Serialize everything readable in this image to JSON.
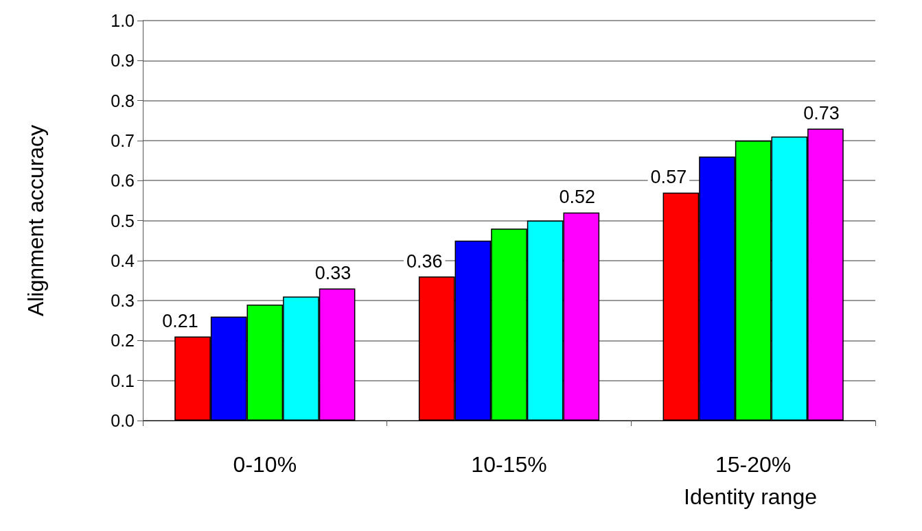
{
  "chart_data": {
    "type": "bar",
    "xlabel": "Identity range",
    "ylabel": "Alignment accuracy",
    "categories": [
      "0-10%",
      "10-15%",
      "15-20%"
    ],
    "series": [
      {
        "color": "#ff0000",
        "values": [
          0.21,
          0.36,
          0.57
        ],
        "value_labels": [
          "0.21",
          "0.36",
          "0.57"
        ]
      },
      {
        "color": "#0000ff",
        "values": [
          0.26,
          0.45,
          0.66
        ]
      },
      {
        "color": "#00ff00",
        "values": [
          0.29,
          0.48,
          0.7
        ]
      },
      {
        "color": "#00ffff",
        "values": [
          0.31,
          0.5,
          0.71
        ]
      },
      {
        "color": "#ff00ff",
        "values": [
          0.33,
          0.52,
          0.73
        ],
        "value_labels": [
          "0.33",
          "0.52",
          "0.73"
        ]
      }
    ],
    "ylim": [
      0,
      1
    ],
    "yticks": [
      {
        "value": 0,
        "label": "0.0"
      },
      0.1,
      0.2,
      0.3,
      0.4,
      0.5,
      0.6,
      0.7,
      0.8,
      0.9,
      {
        "value": 1,
        "label": "1.0"
      }
    ],
    "grid": "y"
  }
}
